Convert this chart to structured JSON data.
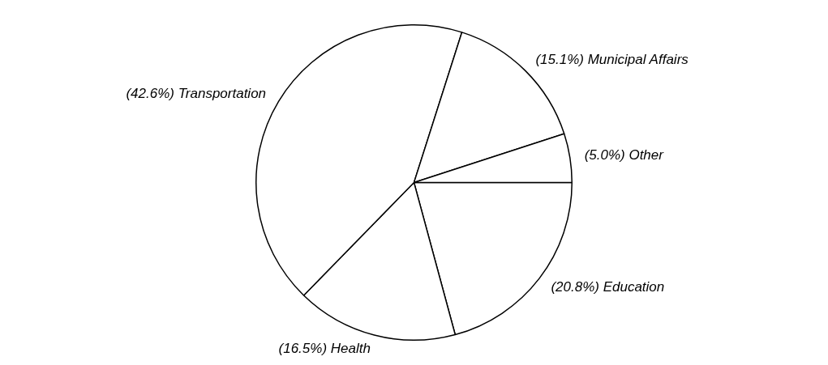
{
  "chart_data": {
    "type": "pie",
    "categories": [
      "Education",
      "Health",
      "Transportation",
      "Municipal Affairs",
      "Other"
    ],
    "values": [
      20.8,
      16.5,
      42.6,
      15.1,
      5.0
    ],
    "value_labels": [
      "(20.8%)",
      "(16.5%)",
      "(42.6%)",
      "(15.1%)",
      "(5.0%)"
    ],
    "colors": [
      "#ffffff",
      "#ffffff",
      "#ffffff",
      "#ffffff",
      "#ffffff"
    ],
    "legend": false
  }
}
